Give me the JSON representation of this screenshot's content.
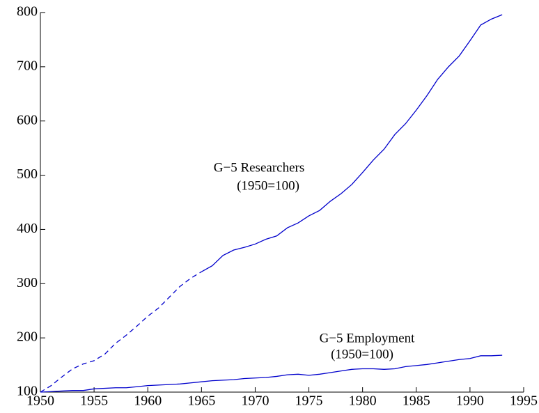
{
  "chart_data": {
    "type": "line",
    "x": [
      1950,
      1951,
      1952,
      1953,
      1954,
      1955,
      1956,
      1957,
      1958,
      1959,
      1960,
      1961,
      1962,
      1963,
      1964,
      1965,
      1966,
      1967,
      1968,
      1969,
      1970,
      1971,
      1972,
      1973,
      1974,
      1975,
      1976,
      1977,
      1978,
      1979,
      1980,
      1981,
      1982,
      1983,
      1984,
      1985,
      1986,
      1987,
      1988,
      1989,
      1990,
      1991,
      1992,
      1993
    ],
    "series": [
      {
        "color": "#0000cc",
        "linestyle": "dashed",
        "values": [
          100,
          112,
          128,
          143,
          152,
          158,
          170,
          190,
          205,
          222,
          240,
          255,
          275,
          295,
          310,
          322,
          null,
          null,
          null,
          null,
          null,
          null,
          null,
          null,
          null,
          null,
          null,
          null,
          null,
          null,
          null,
          null,
          null,
          null,
          null,
          null,
          null,
          null,
          null,
          null,
          null,
          null,
          null,
          null
        ]
      },
      {
        "color": "#0000cc",
        "linestyle": "solid",
        "values": [
          null,
          null,
          null,
          null,
          null,
          null,
          null,
          null,
          null,
          null,
          null,
          null,
          null,
          null,
          null,
          322,
          333,
          352,
          362,
          367,
          373,
          382,
          388,
          403,
          412,
          425,
          435,
          452,
          466,
          483,
          505,
          528,
          548,
          575,
          595,
          620,
          647,
          677,
          700,
          720,
          748,
          777,
          788,
          796
        ]
      },
      {
        "color": "#0000cc",
        "linestyle": "solid",
        "values": [
          100,
          101,
          102,
          103,
          103,
          106,
          107,
          108,
          108,
          110,
          112,
          113,
          114,
          115,
          117,
          119,
          121,
          122,
          123,
          125,
          126,
          127,
          129,
          132,
          133,
          131,
          133,
          136,
          139,
          142,
          143,
          143,
          142,
          143,
          147,
          149,
          151,
          154,
          157,
          160,
          162,
          167,
          167,
          168
        ]
      }
    ],
    "annotations": [
      {
        "lines": [
          "G−5 Researchers",
          "(1950=100)"
        ]
      },
      {
        "lines": [
          "G−5 Employment",
          "(1950=100)"
        ]
      }
    ],
    "xlim": [
      1950,
      1995
    ],
    "xticks": [
      1950,
      1955,
      1960,
      1965,
      1970,
      1975,
      1980,
      1985,
      1990,
      1995
    ],
    "ylim": [
      100,
      800
    ],
    "yticks": [
      100,
      200,
      300,
      400,
      500,
      600,
      700,
      800
    ]
  }
}
